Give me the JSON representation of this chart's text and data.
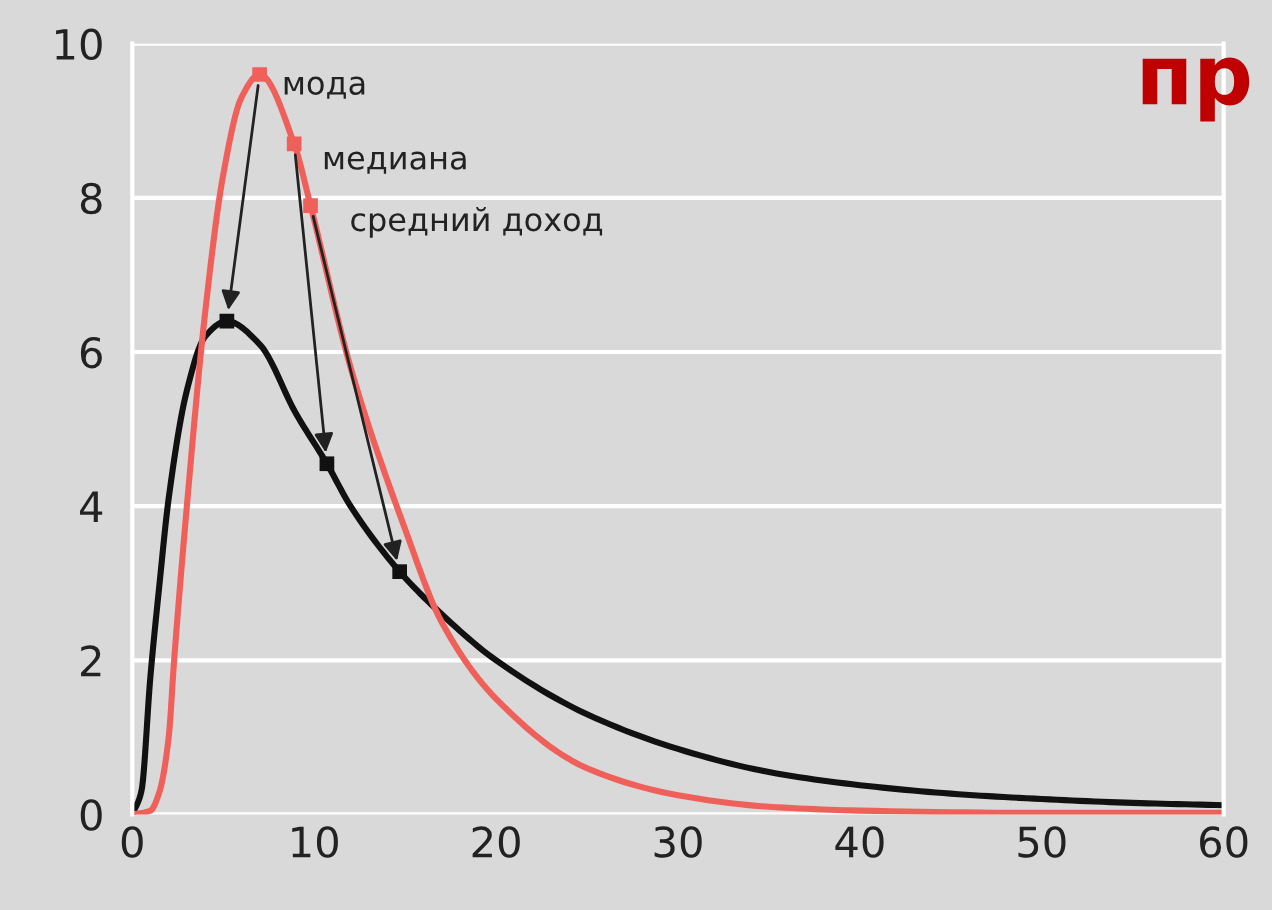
{
  "chart_data": {
    "type": "line",
    "xlim": [
      0,
      60
    ],
    "xticks": [
      0,
      10,
      20,
      30,
      40,
      50,
      60
    ],
    "ylim": [
      0,
      10
    ],
    "yticks": [
      0,
      2,
      4,
      6,
      8,
      10
    ],
    "grid": "y",
    "legend": false,
    "series": [
      {
        "color": "#111111",
        "x": [
          0,
          0.5,
          1,
          1.5,
          2,
          3,
          4,
          5.2,
          7,
          9,
          10.7,
          12,
          14.7,
          17,
          20,
          25,
          30,
          35,
          40,
          45,
          50,
          55,
          60
        ],
        "values": [
          0,
          0.3,
          1.8,
          3.0,
          4.1,
          5.5,
          6.2,
          6.4,
          6.1,
          5.2,
          4.55,
          4.0,
          3.15,
          2.6,
          2.0,
          1.3,
          0.85,
          0.55,
          0.38,
          0.27,
          0.2,
          0.15,
          0.12
        ]
      },
      {
        "color": "#f0605a",
        "x": [
          0,
          1,
          1.5,
          2,
          2.3,
          3,
          4,
          5,
          6,
          7,
          8.9,
          9.8,
          12,
          15,
          17,
          20,
          25,
          30,
          35,
          40,
          50,
          60
        ],
        "values": [
          0,
          0.05,
          0.3,
          1.0,
          2.0,
          4.0,
          6.5,
          8.3,
          9.3,
          9.6,
          8.7,
          7.9,
          5.8,
          3.7,
          2.5,
          1.5,
          0.6,
          0.25,
          0.1,
          0.05,
          0.02,
          0.02
        ]
      },
      {
        "type": "scatter",
        "marker": "square",
        "color": "#f0605a",
        "x": [
          7,
          8.9,
          9.8
        ],
        "values": [
          9.6,
          8.7,
          7.9
        ]
      },
      {
        "type": "scatter",
        "marker": "square",
        "color": "#111111",
        "x": [
          5.2,
          10.7,
          14.7
        ],
        "values": [
          6.4,
          4.55,
          3.15
        ]
      }
    ],
    "annotations": [
      {
        "text": "мода",
        "x": 7,
        "y": 9.6
      },
      {
        "text": "медиана",
        "x": 8.9,
        "y": 8.7
      },
      {
        "text": "средний доход",
        "x": 9.8,
        "y": 7.9
      },
      "пр"
    ]
  }
}
